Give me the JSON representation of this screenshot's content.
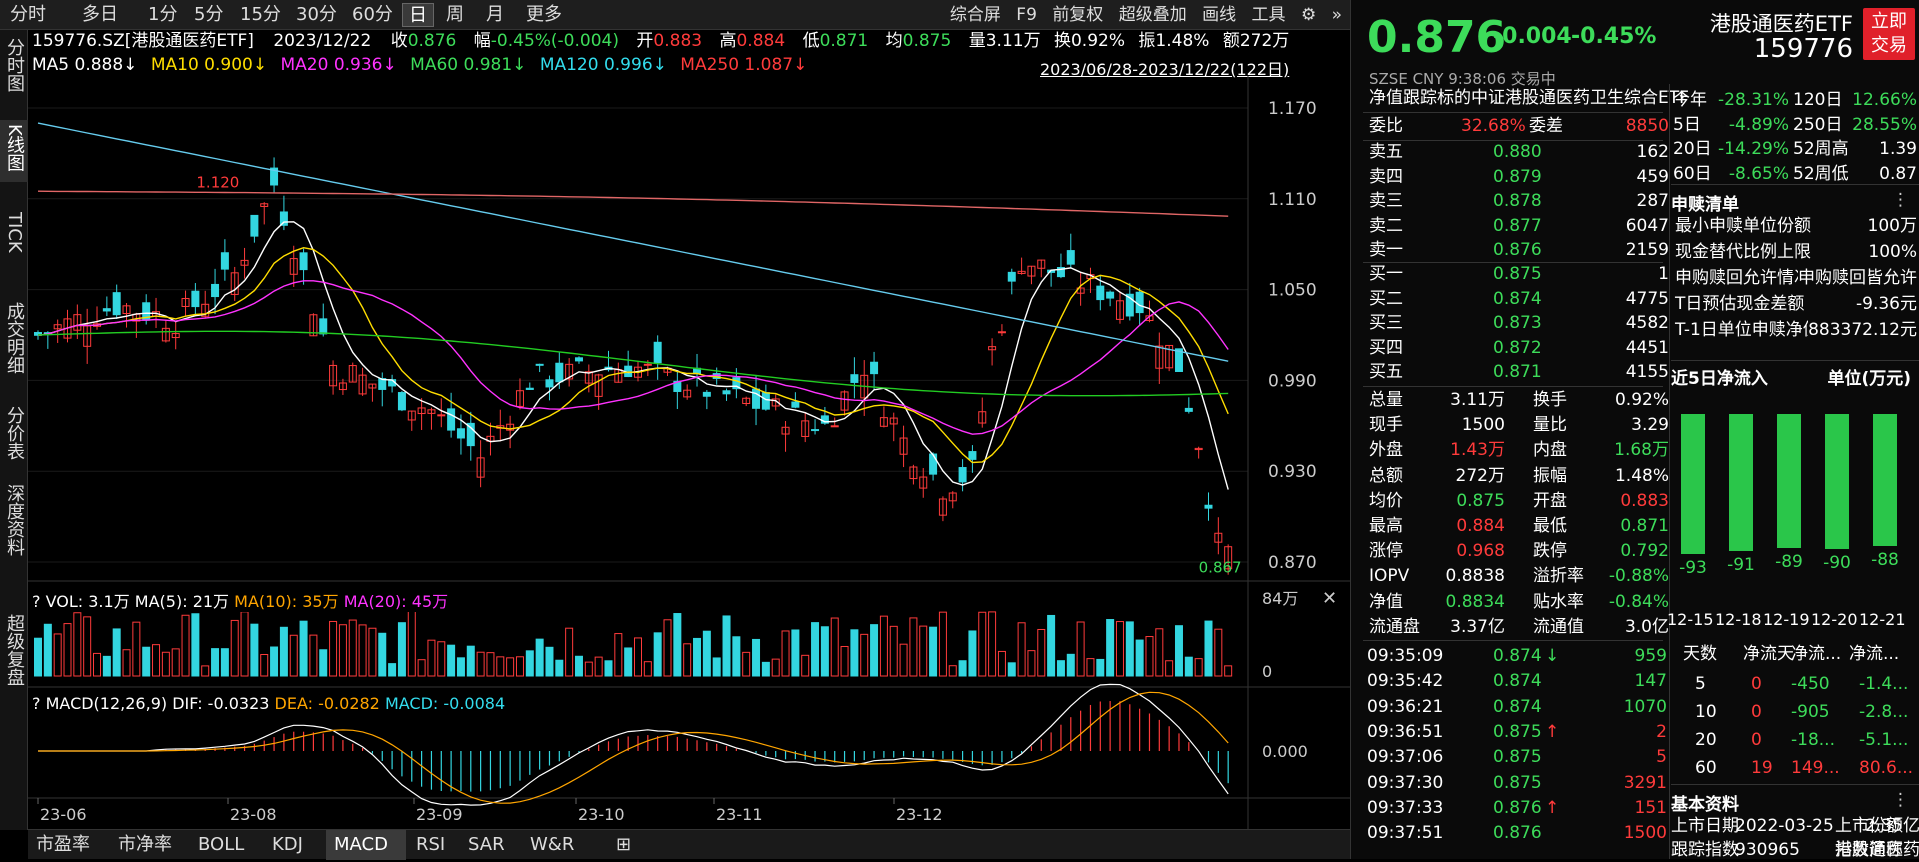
{
  "colors": {
    "up": "#ff3b3b",
    "down": "#3ddc5a",
    "candle_down": "#33d6e0",
    "ma5": "#ffffff",
    "ma10": "#ffdd00",
    "ma20": "#ff33ff",
    "ma60": "#22cc22",
    "ma120": "#66ccee",
    "ma250": "#e06666"
  },
  "periods": [
    "分时",
    "多日",
    "1分",
    "5分",
    "15分",
    "30分",
    "60分",
    "日",
    "周",
    "月",
    "更多"
  ],
  "active_period": "日",
  "tools": [
    "综合屏",
    "F9",
    "前复权",
    "超级叠加",
    "画线",
    "工具"
  ],
  "left_tabs": [
    "分时图",
    "K线图",
    "TICK",
    "成交明细",
    "分价表",
    "深度资料",
    "超级复盘"
  ],
  "info_line": {
    "code": "159776.SZ[港股通医药ETF]",
    "date": "2023/12/22",
    "close_label": "收",
    "close": "0.876",
    "amp_label": "幅",
    "amp": "-0.45%(-0.004)",
    "open_label": "开",
    "open": "0.883",
    "high_label": "高",
    "high": "0.884",
    "low_label": "低",
    "low": "0.871",
    "avg_label": "均",
    "avg": "0.875",
    "vol": "量3.11万",
    "turn": "换0.92%",
    "swing": "振1.48%",
    "amt": "额272万"
  },
  "ma_line": {
    "ma5": "MA5 0.888↓",
    "ma10": "MA10 0.900↓",
    "ma20": "MA20 0.936↓",
    "ma60": "MA60 0.981↓",
    "ma120": "MA120 0.996↓",
    "ma250": "MA250 1.087↓",
    "range": "2023/06/28-2023/12/22(122日)"
  },
  "price_axis": [
    "1.170",
    "1.110",
    "1.050",
    "0.990",
    "0.930",
    "0.870"
  ],
  "annotations": {
    "high": "1.120",
    "low": "0.867"
  },
  "vol_line": {
    "q": "?",
    "vol": "VOL: 3.1万",
    "ma5": "MA(5): 21万",
    "ma10": "MA(10): 35万",
    "ma20": "MA(20): 45万"
  },
  "vol_axis": [
    "84万",
    "0"
  ],
  "macd_line": {
    "q": "?",
    "name": "MACD(12,26,9)",
    "dif": "DIF: -0.0323",
    "dea": "DEA: -0.0282",
    "macd": "MACD: -0.0084"
  },
  "macd_axis": [
    "0.000"
  ],
  "date_axis": [
    "23-06",
    "23-08",
    "23-09",
    "23-10",
    "23-11",
    "23-12"
  ],
  "bottom_tabs": [
    "市盈率",
    "市净率",
    "BOLL",
    "KDJ",
    "MACD",
    "RSI",
    "SAR",
    "W&R"
  ],
  "active_bottom": "MACD",
  "quote": {
    "price": "0.876",
    "change": "-0.004",
    "pct": "-0.45%",
    "name": "港股通医药ETF",
    "code": "159776",
    "trade_button": "立即交易",
    "sub": "SZSE  CNY  9:38:06  交易中",
    "net_label": "净值",
    "index_label": "跟踪标的",
    "index_name": "中证港股通医药卫生综合ETF"
  },
  "ratio": {
    "label1": "委比",
    "val1": "32.68%",
    "label2": "委差",
    "val2": "8850"
  },
  "asks": [
    {
      "label": "卖五",
      "price": "0.880",
      "vol": "162"
    },
    {
      "label": "卖四",
      "price": "0.879",
      "vol": "459"
    },
    {
      "label": "卖三",
      "price": "0.878",
      "vol": "287"
    },
    {
      "label": "卖二",
      "price": "0.877",
      "vol": "6047"
    },
    {
      "label": "卖一",
      "price": "0.876",
      "vol": "2159"
    }
  ],
  "bids": [
    {
      "label": "买一",
      "price": "0.875",
      "vol": "1"
    },
    {
      "label": "买二",
      "price": "0.874",
      "vol": "4775"
    },
    {
      "label": "买三",
      "price": "0.873",
      "vol": "4582"
    },
    {
      "label": "买四",
      "price": "0.872",
      "vol": "4451"
    },
    {
      "label": "买五",
      "price": "0.871",
      "vol": "4155"
    }
  ],
  "stats": [
    {
      "l1": "总量",
      "v1": "3.11万",
      "l2": "换手",
      "v2": "0.92%",
      "c1": "w",
      "c2": "w"
    },
    {
      "l1": "现手",
      "v1": "1500",
      "l2": "量比",
      "v2": "3.29",
      "c1": "w",
      "c2": "w"
    },
    {
      "l1": "外盘",
      "v1": "1.43万",
      "l2": "内盘",
      "v2": "1.68万",
      "c1": "r",
      "c2": "g"
    },
    {
      "l1": "总额",
      "v1": "272万",
      "l2": "振幅",
      "v2": "1.48%",
      "c1": "w",
      "c2": "w"
    },
    {
      "l1": "均价",
      "v1": "0.875",
      "l2": "开盘",
      "v2": "0.883",
      "c1": "g",
      "c2": "r"
    },
    {
      "l1": "最高",
      "v1": "0.884",
      "l2": "最低",
      "v2": "0.871",
      "c1": "r",
      "c2": "g"
    },
    {
      "l1": "涨停",
      "v1": "0.968",
      "l2": "跌停",
      "v2": "0.792",
      "c1": "r",
      "c2": "g"
    },
    {
      "l1": "IOPV",
      "v1": "0.8838",
      "l2": "溢折率",
      "v2": "-0.88%",
      "c1": "w",
      "c2": "g"
    },
    {
      "l1": "净值",
      "v1": "0.8834",
      "l2": "贴水率",
      "v2": "-0.84%",
      "c1": "g",
      "c2": "g"
    },
    {
      "l1": "流通盘",
      "v1": "3.37亿",
      "l2": "流通值",
      "v2": "3.0亿",
      "c1": "w",
      "c2": "w"
    }
  ],
  "ticks": [
    {
      "t": "09:35:09",
      "p": "0.874",
      "arrow": "↓",
      "v": "959",
      "vc": "g"
    },
    {
      "t": "09:35:42",
      "p": "0.874",
      "arrow": "",
      "v": "147",
      "vc": "g"
    },
    {
      "t": "09:36:21",
      "p": "0.874",
      "arrow": "",
      "v": "1070",
      "vc": "g"
    },
    {
      "t": "09:36:51",
      "p": "0.875",
      "arrow": "↑",
      "v": "2",
      "vc": "r"
    },
    {
      "t": "09:37:06",
      "p": "0.875",
      "arrow": "",
      "v": "5",
      "vc": "r"
    },
    {
      "t": "09:37:30",
      "p": "0.875",
      "arrow": "",
      "v": "3291",
      "vc": "r"
    },
    {
      "t": "09:37:33",
      "p": "0.876",
      "arrow": "↑",
      "v": "151",
      "vc": "r"
    },
    {
      "t": "09:37:51",
      "p": "0.876",
      "arrow": "",
      "v": "1500",
      "vc": "r"
    }
  ],
  "perf": [
    {
      "l1": "今年",
      "v1": "-28.31%",
      "l2": "120日",
      "v2": "12.66%",
      "c2": "g"
    },
    {
      "l1": "5日",
      "v1": "-4.89%",
      "l2": "250日",
      "v2": "28.55%",
      "c2": "g"
    },
    {
      "l1": "20日",
      "v1": "-14.29%",
      "l2": "52周高",
      "v2": "1.39",
      "c2": "w"
    },
    {
      "l1": "60日",
      "v1": "-8.65%",
      "l2": "52周低",
      "v2": "0.87",
      "c2": "w"
    }
  ],
  "subscribe": {
    "title": "申赎清单",
    "more": "⋮",
    "rows": [
      {
        "l": "最小申赎单位份额",
        "v": "100万"
      },
      {
        "l": "现金替代比例上限",
        "v": "100%"
      },
      {
        "l": "申购赎回允许情况",
        "v": "申购赎回皆允许"
      },
      {
        "l": "T日预估现金差额",
        "v": "-9.36元"
      },
      {
        "l": "T-1日单位申赎净值",
        "v": "883372.12元"
      }
    ]
  },
  "inflow": {
    "title": "近5日净流入",
    "unit": "单位(万元)",
    "values": [
      -93,
      -91,
      -89,
      -90,
      -88
    ],
    "labels": [
      "-93",
      "-91",
      "-89",
      "-90",
      "-88"
    ],
    "dates": [
      "12-15",
      "12-18",
      "12-19",
      "12-20",
      "12-21"
    ]
  },
  "flow_table": {
    "headers": [
      "天数",
      "净流天",
      "净流...",
      "净流..."
    ],
    "rows": [
      {
        "d": "5",
        "a": "0",
        "b": "-450",
        "c": "-1.4..."
      },
      {
        "d": "10",
        "a": "0",
        "b": "-905",
        "c": "-2.8..."
      },
      {
        "d": "20",
        "a": "0",
        "b": "-18...",
        "c": "-5.1..."
      },
      {
        "d": "60",
        "a": "19",
        "b": "149...",
        "c": "80.6..."
      }
    ]
  },
  "basic": {
    "title": "基本资料",
    "more": "⋮",
    "l1": "上市日期",
    "v1": "2022-03-25",
    "l2": "上市份额",
    "v2": "2.35亿",
    "l3": "跟踪指数",
    "v3": "930965",
    "l4": "指数简称",
    "v4": "港股通医药"
  }
}
